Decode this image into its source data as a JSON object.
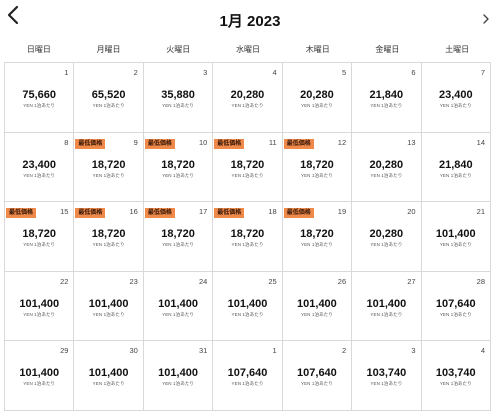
{
  "header": {
    "title": "1月 2023",
    "prev_icon": "chevron-left-icon",
    "next_icon": "chevron-right-icon"
  },
  "weekdays": [
    "日曜日",
    "月曜日",
    "火曜日",
    "水曜日",
    "木曜日",
    "金曜日",
    "土曜日"
  ],
  "price_unit": "YEN 1泊あたり",
  "badge_color": "#f08a4b",
  "calendar": [
    {
      "day": "1",
      "price": "75,660"
    },
    {
      "day": "2",
      "price": "65,520"
    },
    {
      "day": "3",
      "price": "35,880"
    },
    {
      "day": "4",
      "price": "20,280"
    },
    {
      "day": "5",
      "price": "20,280"
    },
    {
      "day": "6",
      "price": "21,840"
    },
    {
      "day": "7",
      "price": "23,400"
    },
    {
      "day": "8",
      "price": "23,400"
    },
    {
      "day": "9",
      "price": "18,720",
      "badge": "最低価格"
    },
    {
      "day": "10",
      "price": "18,720",
      "badge": "最低価格"
    },
    {
      "day": "11",
      "price": "18,720",
      "badge": "最低価格"
    },
    {
      "day": "12",
      "price": "18,720",
      "badge": "最低価格"
    },
    {
      "day": "13",
      "price": "20,280"
    },
    {
      "day": "14",
      "price": "21,840"
    },
    {
      "day": "15",
      "price": "18,720",
      "badge": "最低価格"
    },
    {
      "day": "16",
      "price": "18,720",
      "badge": "最低価格"
    },
    {
      "day": "17",
      "price": "18,720",
      "badge": "最低価格"
    },
    {
      "day": "18",
      "price": "18,720",
      "badge": "最低価格"
    },
    {
      "day": "19",
      "price": "18,720",
      "badge": "最低価格"
    },
    {
      "day": "20",
      "price": "20,280"
    },
    {
      "day": "21",
      "price": "101,400"
    },
    {
      "day": "22",
      "price": "101,400"
    },
    {
      "day": "23",
      "price": "101,400"
    },
    {
      "day": "24",
      "price": "101,400"
    },
    {
      "day": "25",
      "price": "101,400"
    },
    {
      "day": "26",
      "price": "101,400"
    },
    {
      "day": "27",
      "price": "101,400"
    },
    {
      "day": "28",
      "price": "107,640"
    },
    {
      "day": "29",
      "price": "101,400"
    },
    {
      "day": "30",
      "price": "101,400"
    },
    {
      "day": "31",
      "price": "101,400"
    },
    {
      "day": "1",
      "price": "107,640"
    },
    {
      "day": "2",
      "price": "107,640"
    },
    {
      "day": "3",
      "price": "103,740"
    },
    {
      "day": "4",
      "price": "103,740"
    }
  ]
}
